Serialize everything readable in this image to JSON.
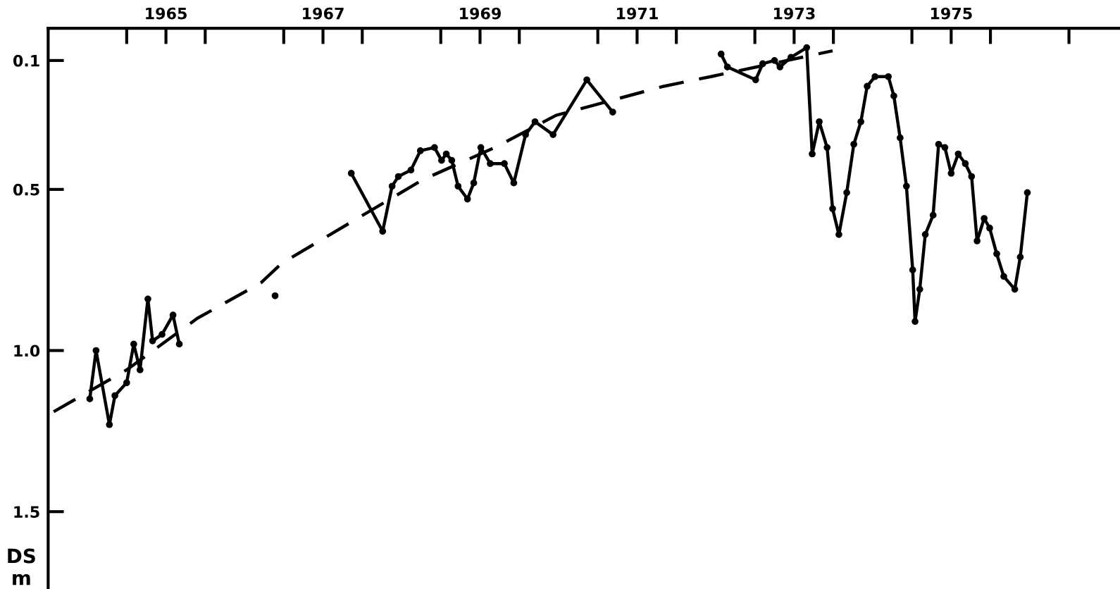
{
  "chart_data": {
    "type": "line",
    "ylabel": "DS\nm",
    "xlim": [
      1964,
      1977.65
    ],
    "ylim": [
      1.74,
      0.0
    ],
    "xticks": [
      {
        "value": 1965,
        "label": null
      },
      {
        "value": 1966,
        "label": null
      },
      {
        "value": 1967,
        "label": null
      },
      {
        "value": 1968,
        "label": null
      },
      {
        "value": 1969,
        "label": null
      },
      {
        "value": 1970,
        "label": null
      },
      {
        "value": 1971,
        "label": null
      },
      {
        "value": 1972,
        "label": null
      },
      {
        "value": 1973,
        "label": null
      },
      {
        "value": 1974,
        "label": null
      },
      {
        "value": 1975,
        "label": null
      },
      {
        "value": 1976,
        "label": null
      },
      {
        "value": 1977,
        "label": null
      },
      {
        "value": 1965.5,
        "label": "1965"
      },
      {
        "value": 1967.5,
        "label": "1967"
      },
      {
        "value": 1969.5,
        "label": "1969"
      },
      {
        "value": 1971.5,
        "label": "1971"
      },
      {
        "value": 1973.5,
        "label": "1973"
      },
      {
        "value": 1975.5,
        "label": "1975"
      }
    ],
    "yticks": [
      0.1,
      0.5,
      {
        "value": 1.0,
        "label": "1.0"
      },
      1.5
    ],
    "grid": false,
    "legend": false,
    "series": [
      {
        "color": "#000000",
        "marker": "circle",
        "line_style": "solid",
        "x": [
          1964.53,
          1964.61,
          1964.78,
          1964.85,
          1965.0,
          1965.09,
          1965.17,
          1965.27,
          1965.33,
          1965.45,
          1965.59,
          1965.67,
          1966.2,
          1966.89,
          1967.3,
          1967.86,
          1968.26,
          1968.38,
          1968.46,
          1968.62,
          1968.74,
          1968.92,
          1969.01,
          1969.07,
          1969.14,
          1969.22,
          1969.34,
          1969.42,
          1969.51,
          1969.63,
          1969.81,
          1969.93,
          1970.08,
          1970.2,
          1970.43,
          1970.86,
          1971.19,
          1971.9,
          1972.57,
          1972.65,
          1973.01,
          1973.1,
          1973.25,
          1973.32,
          1973.46,
          1973.66,
          1973.73,
          1973.82,
          1973.92,
          1973.99,
          1974.07,
          1974.17,
          1974.26,
          1974.35,
          1974.43,
          1974.53,
          1974.7,
          1974.77,
          1974.85,
          1974.93,
          1975.01,
          1975.04,
          1975.1,
          1975.17,
          1975.27,
          1975.34,
          1975.42,
          1975.5,
          1975.59,
          1975.68,
          1975.76,
          1975.83,
          1975.92,
          1975.99,
          1976.08,
          1976.17,
          1976.31,
          1976.38,
          1976.47
        ],
        "values": [
          1.15,
          1.0,
          1.23,
          1.14,
          1.1,
          0.98,
          1.06,
          0.84,
          0.97,
          0.95,
          0.89,
          0.98,
          null,
          0.83,
          null,
          0.45,
          0.63,
          0.49,
          0.46,
          0.44,
          0.38,
          0.37,
          0.41,
          0.39,
          0.41,
          0.49,
          0.53,
          0.48,
          0.37,
          0.42,
          0.42,
          0.48,
          0.33,
          0.29,
          0.33,
          0.16,
          0.26,
          null,
          0.08,
          0.12,
          0.16,
          0.11,
          0.1,
          0.12,
          0.09,
          0.06,
          0.39,
          0.29,
          0.37,
          0.56,
          0.64,
          0.51,
          0.36,
          0.29,
          0.18,
          0.15,
          0.15,
          0.21,
          0.34,
          0.49,
          0.75,
          0.91,
          0.81,
          0.64,
          0.58,
          0.36,
          0.37,
          0.45,
          0.39,
          0.42,
          0.46,
          0.66,
          0.59,
          0.62,
          0.7,
          0.77,
          0.81,
          0.71,
          0.51
        ]
      },
      {
        "color": "#000000",
        "marker": "none",
        "line_style": "dashed",
        "x": [
          1964.07,
          1965.0,
          1965.9,
          1966.71,
          1966.97,
          1967.87,
          1968.77,
          1969.69,
          1970.47,
          1971.84,
          1972.44,
          1973.99
        ],
        "values": [
          1.19,
          1.06,
          0.9,
          0.79,
          0.73,
          0.6,
          0.47,
          0.37,
          0.27,
          0.18,
          0.15,
          0.07
        ]
      }
    ]
  }
}
